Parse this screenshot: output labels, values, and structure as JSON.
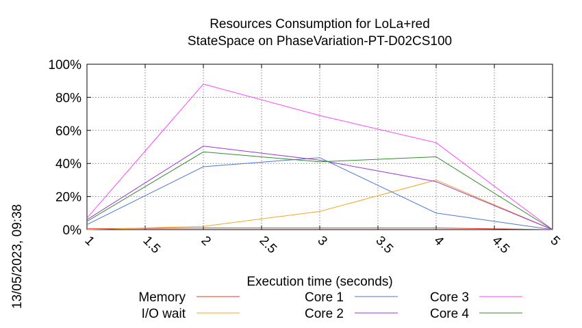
{
  "timestamp": "13/05/2023, 09:38",
  "chart_data": {
    "type": "line",
    "title": [
      "Resources Consumption for LoLa+red",
      "StateSpace on PhaseVariation-PT-D02CS100"
    ],
    "xlabel": "Execution time (seconds)",
    "ylabel": "",
    "xlim": [
      1,
      5
    ],
    "ylim": [
      0,
      100
    ],
    "x_ticks": [
      1,
      1.5,
      2,
      2.5,
      3,
      3.5,
      4,
      4.5,
      5
    ],
    "x_tick_labels": [
      "1",
      "1.5",
      "2",
      "2.5",
      "3",
      "3.5",
      "4",
      "4.5",
      "5"
    ],
    "y_ticks": [
      0,
      20,
      40,
      60,
      80,
      100
    ],
    "y_tick_labels": [
      "0%",
      "20%",
      "40%",
      "60%",
      "80%",
      "100%"
    ],
    "grid": true,
    "legend_position": "bottom",
    "series": [
      {
        "name": "Memory",
        "color": "#e8352b",
        "x": [
          1,
          2,
          3,
          4,
          5
        ],
        "values": [
          0.5,
          1,
          1,
          1,
          0
        ]
      },
      {
        "name": "I/O wait",
        "color": "#f5a623",
        "x": [
          1,
          2,
          3,
          4,
          5
        ],
        "values": [
          0,
          2,
          11,
          30,
          0
        ]
      },
      {
        "name": "Core 1",
        "color": "#4a77d4",
        "x": [
          1,
          2,
          3,
          4,
          5
        ],
        "values": [
          3,
          38,
          43.5,
          10,
          0
        ]
      },
      {
        "name": "Core 2",
        "color": "#9b30e0",
        "x": [
          1,
          2,
          3,
          4,
          5
        ],
        "values": [
          6,
          50.5,
          42,
          29,
          0
        ]
      },
      {
        "name": "Core 3",
        "color": "#ff44ff",
        "x": [
          1,
          2,
          3,
          4,
          5
        ],
        "values": [
          7,
          88,
          69,
          52.5,
          0
        ]
      },
      {
        "name": "Core 4",
        "color": "#2e8b2e",
        "x": [
          1,
          2,
          3,
          4,
          5
        ],
        "values": [
          5,
          47,
          41,
          44,
          0
        ]
      }
    ]
  }
}
